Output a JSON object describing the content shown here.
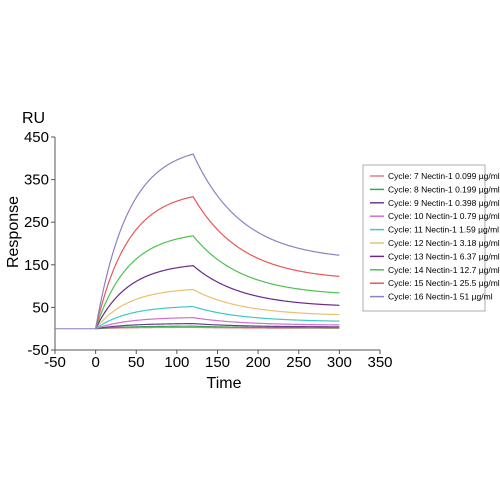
{
  "chart_data": {
    "type": "line",
    "unit_label": "RU",
    "xlabel": "Time",
    "ylabel": "Response",
    "xlim": [
      -50,
      350
    ],
    "ylim": [
      -50,
      450
    ],
    "x_ticks": [
      "-50",
      "0",
      "50",
      "100",
      "150",
      "200",
      "250",
      "300",
      "350"
    ],
    "y_ticks": [
      "-50",
      "50",
      "150",
      "250",
      "350",
      "450"
    ],
    "grid": false,
    "legend_position": "right",
    "model": {
      "inject_start": 0,
      "inject_end": 120,
      "end": 300
    },
    "series": [
      {
        "name": "Cycle: 7 Nectin-1 0.099 µg/ml",
        "color": "#e08080",
        "rmax": 3,
        "tau_on": 40,
        "plateau": 1,
        "tau_off": 60
      },
      {
        "name": "Cycle: 8 Nectin-1 0.199 µg/ml",
        "color": "#3aa655",
        "rmax": 6,
        "tau_on": 40,
        "plateau": 2,
        "tau_off": 60
      },
      {
        "name": "Cycle: 9 Nectin-1 0.398 µg/ml",
        "color": "#6b3d8f",
        "rmax": 12,
        "tau_on": 40,
        "plateau": 4,
        "tau_off": 60
      },
      {
        "name": "Cycle: 10 Nectin-1 0.79 µg/ml",
        "color": "#d070d0",
        "rmax": 26,
        "tau_on": 40,
        "plateau": 8,
        "tau_off": 60
      },
      {
        "name": "Cycle: 11 Nectin-1 1.59 µg/ml",
        "color": "#40c8c8",
        "rmax": 52,
        "tau_on": 40,
        "plateau": 16,
        "tau_off": 60
      },
      {
        "name": "Cycle: 12 Nectin-1 3.18 µg/ml",
        "color": "#e8c070",
        "rmax": 92,
        "tau_on": 40,
        "plateau": 30,
        "tau_off": 60
      },
      {
        "name": "Cycle: 13 Nectin-1 6.37 µg/ml",
        "color": "#6a2a8a",
        "rmax": 148,
        "tau_on": 40,
        "plateau": 50,
        "tau_off": 60
      },
      {
        "name": "Cycle: 14 Nectin-1 12.7 µg/ml",
        "color": "#50c050",
        "rmax": 218,
        "tau_on": 40,
        "plateau": 77,
        "tau_off": 60
      },
      {
        "name": "Cycle: 15 Nectin-1 25.5 µg/ml",
        "color": "#e85858",
        "rmax": 310,
        "tau_on": 40,
        "plateau": 113,
        "tau_off": 60
      },
      {
        "name": "Cycle: 16 Nectin-1 51 µg/ml",
        "color": "#9080c0",
        "rmax": 410,
        "tau_on": 40,
        "plateau": 160,
        "tau_off": 60
      }
    ]
  }
}
